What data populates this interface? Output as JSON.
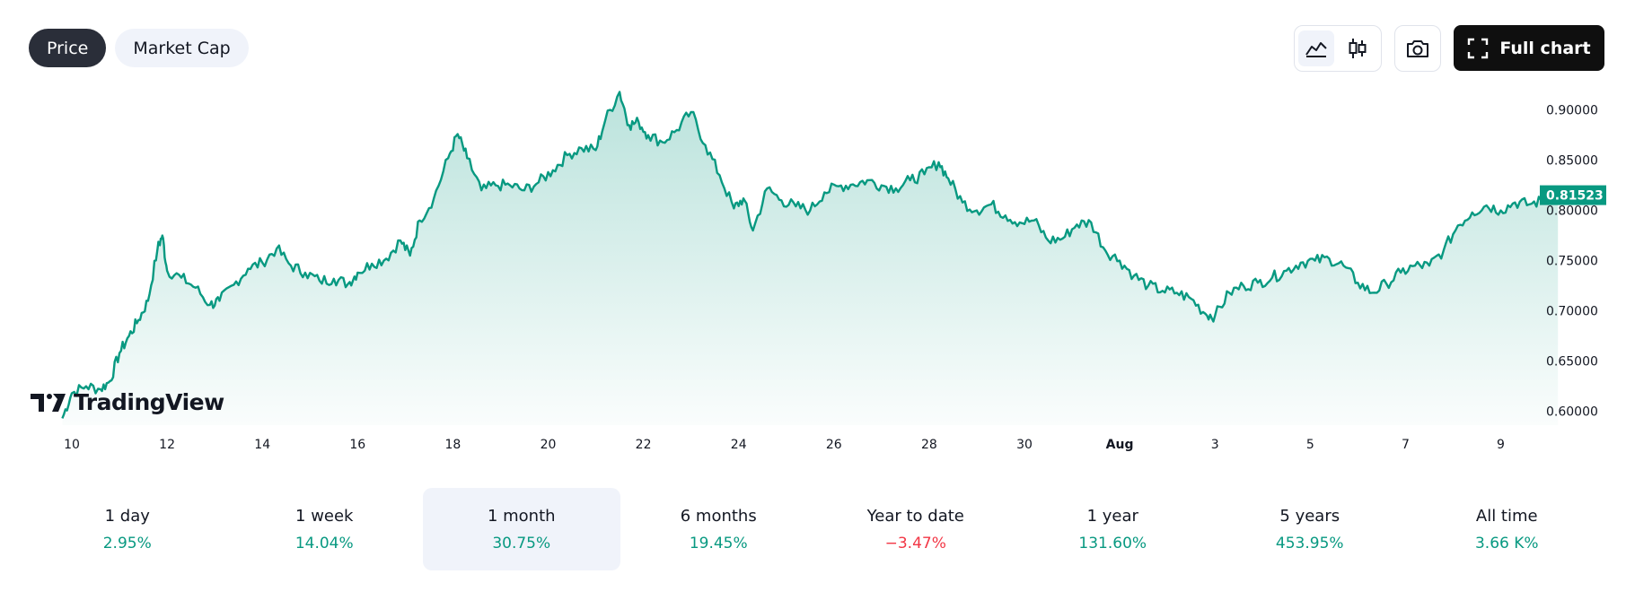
{
  "toggle": {
    "price_label": "Price",
    "market_cap_label": "Market Cap",
    "active": "price"
  },
  "toolbar": {
    "area_icon": "area-chart-icon",
    "candle_icon": "candlestick-icon",
    "snapshot_icon": "camera-icon",
    "full_chart_icon": "fullscreen-icon",
    "full_chart_label": "Full chart"
  },
  "logo": {
    "text": "TradingView"
  },
  "colors": {
    "line": "#089981",
    "positive": "#089981",
    "negative": "#f23645",
    "last_price_badge": "#089981"
  },
  "chart_data": {
    "type": "area",
    "title": "",
    "xlabel": "",
    "ylabel": "",
    "x_ticks": [
      "10",
      "12",
      "14",
      "16",
      "18",
      "20",
      "22",
      "24",
      "26",
      "28",
      "30",
      "Aug",
      "3",
      "5",
      "7",
      "9"
    ],
    "y_ticks": [
      "0.90000",
      "0.85000",
      "0.80000",
      "0.75000",
      "0.70000",
      "0.65000",
      "0.60000"
    ],
    "ylim": [
      0.588,
      0.922
    ],
    "xlim": [
      9.8,
      41.5
    ],
    "last_price": "0.81523",
    "grid": false,
    "series": [
      {
        "values": [
          [
            9.8,
            0.593
          ],
          [
            10.0,
            0.618
          ],
          [
            10.3,
            0.625
          ],
          [
            10.6,
            0.622
          ],
          [
            10.8,
            0.63
          ],
          [
            11.0,
            0.658
          ],
          [
            11.2,
            0.675
          ],
          [
            11.4,
            0.691
          ],
          [
            11.6,
            0.71
          ],
          [
            11.8,
            0.762
          ],
          [
            11.9,
            0.775
          ],
          [
            12.0,
            0.74
          ],
          [
            12.3,
            0.733
          ],
          [
            12.6,
            0.723
          ],
          [
            12.9,
            0.706
          ],
          [
            13.1,
            0.71
          ],
          [
            13.4,
            0.726
          ],
          [
            13.7,
            0.742
          ],
          [
            14.0,
            0.748
          ],
          [
            14.3,
            0.762
          ],
          [
            14.6,
            0.745
          ],
          [
            14.9,
            0.738
          ],
          [
            15.2,
            0.73
          ],
          [
            15.5,
            0.732
          ],
          [
            15.8,
            0.727
          ],
          [
            16.0,
            0.738
          ],
          [
            16.3,
            0.747
          ],
          [
            16.6,
            0.752
          ],
          [
            16.9,
            0.77
          ],
          [
            17.1,
            0.755
          ],
          [
            17.3,
            0.79
          ],
          [
            17.6,
            0.812
          ],
          [
            17.9,
            0.852
          ],
          [
            18.1,
            0.876
          ],
          [
            18.3,
            0.852
          ],
          [
            18.6,
            0.82
          ],
          [
            18.9,
            0.825
          ],
          [
            19.2,
            0.825
          ],
          [
            19.5,
            0.82
          ],
          [
            19.8,
            0.828
          ],
          [
            20.1,
            0.84
          ],
          [
            20.4,
            0.855
          ],
          [
            20.7,
            0.862
          ],
          [
            21.0,
            0.86
          ],
          [
            21.2,
            0.89
          ],
          [
            21.5,
            0.918
          ],
          [
            21.7,
            0.885
          ],
          [
            21.9,
            0.888
          ],
          [
            22.1,
            0.875
          ],
          [
            22.4,
            0.868
          ],
          [
            22.7,
            0.88
          ],
          [
            23.0,
            0.898
          ],
          [
            23.3,
            0.865
          ],
          [
            23.6,
            0.835
          ],
          [
            23.9,
            0.802
          ],
          [
            24.1,
            0.812
          ],
          [
            24.3,
            0.78
          ],
          [
            24.6,
            0.822
          ],
          [
            24.9,
            0.81
          ],
          [
            25.2,
            0.804
          ],
          [
            25.5,
            0.8
          ],
          [
            25.8,
            0.818
          ],
          [
            26.1,
            0.824
          ],
          [
            26.4,
            0.826
          ],
          [
            26.7,
            0.83
          ],
          [
            27.0,
            0.825
          ],
          [
            27.3,
            0.822
          ],
          [
            27.6,
            0.83
          ],
          [
            27.9,
            0.836
          ],
          [
            28.2,
            0.848
          ],
          [
            28.4,
            0.832
          ],
          [
            28.7,
            0.808
          ],
          [
            29.0,
            0.8
          ],
          [
            29.3,
            0.806
          ],
          [
            29.6,
            0.795
          ],
          [
            29.9,
            0.788
          ],
          [
            30.2,
            0.79
          ],
          [
            30.5,
            0.77
          ],
          [
            30.8,
            0.772
          ],
          [
            31.1,
            0.786
          ],
          [
            31.4,
            0.788
          ],
          [
            31.7,
            0.76
          ],
          [
            32.0,
            0.75
          ],
          [
            32.3,
            0.735
          ],
          [
            32.6,
            0.725
          ],
          [
            32.9,
            0.72
          ],
          [
            33.2,
            0.718
          ],
          [
            33.5,
            0.712
          ],
          [
            33.8,
            0.697
          ],
          [
            34.0,
            0.695
          ],
          [
            34.3,
            0.718
          ],
          [
            34.6,
            0.725
          ],
          [
            34.9,
            0.728
          ],
          [
            35.2,
            0.733
          ],
          [
            35.5,
            0.74
          ],
          [
            35.8,
            0.748
          ],
          [
            36.1,
            0.75
          ],
          [
            36.4,
            0.752
          ],
          [
            36.7,
            0.745
          ],
          [
            37.0,
            0.728
          ],
          [
            37.3,
            0.718
          ],
          [
            37.6,
            0.727
          ],
          [
            37.9,
            0.738
          ],
          [
            38.2,
            0.745
          ],
          [
            38.5,
            0.745
          ],
          [
            38.8,
            0.76
          ],
          [
            39.1,
            0.785
          ],
          [
            39.4,
            0.798
          ],
          [
            39.7,
            0.805
          ],
          [
            40.0,
            0.8
          ],
          [
            40.3,
            0.808
          ],
          [
            40.6,
            0.806
          ],
          [
            40.9,
            0.81
          ],
          [
            41.2,
            0.815
          ]
        ]
      }
    ]
  },
  "periods": [
    {
      "label": "1 day",
      "value": "2.95%",
      "trend": "pos",
      "selected": false
    },
    {
      "label": "1 week",
      "value": "14.04%",
      "trend": "pos",
      "selected": false
    },
    {
      "label": "1 month",
      "value": "30.75%",
      "trend": "pos",
      "selected": true
    },
    {
      "label": "6 months",
      "value": "19.45%",
      "trend": "pos",
      "selected": false
    },
    {
      "label": "Year to date",
      "value": "−3.47%",
      "trend": "neg",
      "selected": false
    },
    {
      "label": "1 year",
      "value": "131.60%",
      "trend": "pos",
      "selected": false
    },
    {
      "label": "5 years",
      "value": "453.95%",
      "trend": "pos",
      "selected": false
    },
    {
      "label": "All time",
      "value": "3.66 K%",
      "trend": "pos",
      "selected": false
    }
  ]
}
